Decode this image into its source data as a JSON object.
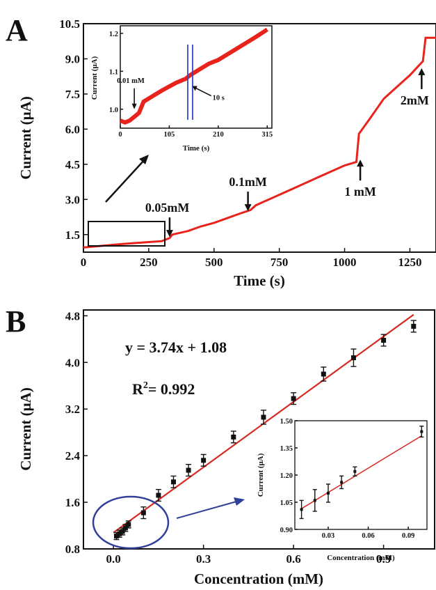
{
  "colors": {
    "trace": "#e8231c",
    "fit": "#d62a22",
    "marker": "#111111",
    "ellipse": "#2f3f9a",
    "marker_line": "#3347c8",
    "axis": "#111111"
  },
  "chart_data": [
    {
      "id": "A",
      "panel_label": "A",
      "type": "line",
      "xlabel": "Time (s)",
      "ylabel": "Current (μA)",
      "xlim": [
        0,
        1350
      ],
      "ylim": [
        0.75,
        10.5
      ],
      "xticks": [
        0,
        250,
        500,
        750,
        1000,
        1250
      ],
      "yticks": [
        1.5,
        3.0,
        4.5,
        6.0,
        7.5,
        9.0,
        10.5
      ],
      "ytick_labels": [
        "1.5",
        "3.0",
        "4.5",
        "6.0",
        "7.5",
        "9.0",
        "10.5"
      ],
      "series": [
        {
          "x": [
            0,
            50,
            100,
            150,
            200,
            250,
            300,
            330,
            340,
            400,
            450,
            500,
            550,
            600,
            640,
            660,
            700,
            750,
            800,
            850,
            900,
            950,
            1000,
            1045,
            1055,
            1100,
            1150,
            1200,
            1250,
            1300,
            1310,
            1350
          ],
          "y": [
            0.95,
            1.0,
            1.05,
            1.1,
            1.14,
            1.18,
            1.22,
            1.35,
            1.5,
            1.65,
            1.85,
            2.0,
            2.2,
            2.4,
            2.55,
            2.75,
            2.95,
            3.2,
            3.45,
            3.7,
            3.95,
            4.2,
            4.45,
            4.6,
            5.8,
            6.5,
            7.3,
            7.8,
            8.3,
            8.9,
            9.9,
            9.9
          ]
        }
      ],
      "annotations": [
        {
          "text": "0.05mM",
          "x": 330,
          "y": 1.4,
          "arrow": "down"
        },
        {
          "text": "0.1mM",
          "x": 630,
          "y": 2.5,
          "arrow": "down"
        },
        {
          "text": "1 mM",
          "x": 1060,
          "y": 4.7,
          "arrow": "up"
        },
        {
          "text": "2mM",
          "x": 1295,
          "y": 8.6,
          "arrow": "up"
        }
      ],
      "inset": {
        "xlabel": "Time (s)",
        "ylabel": "Current (μA)",
        "xlim": [
          0,
          325
        ],
        "ylim": [
          0.95,
          1.22
        ],
        "xticks": [
          0,
          105,
          210,
          315
        ],
        "yticks": [
          1.0,
          1.1,
          1.2
        ],
        "ytick_labels": [
          "1.0",
          "1.1",
          "1.2"
        ],
        "series": [
          {
            "x": [
              0,
              10,
              20,
              30,
              40,
              50,
              70,
              90,
              105,
              120,
              140,
              150,
              170,
              190,
              210,
              230,
              250,
              270,
              290,
              315
            ],
            "y": [
              0.97,
              0.965,
              0.97,
              0.98,
              0.99,
              1.02,
              1.035,
              1.05,
              1.06,
              1.07,
              1.08,
              1.09,
              1.105,
              1.12,
              1.13,
              1.145,
              1.16,
              1.175,
              1.19,
              1.21
            ]
          }
        ],
        "annotations": [
          {
            "text": "0.01 mM",
            "x": 30,
            "y": 1.0,
            "arrow": "down"
          },
          {
            "text": "10 s",
            "x": 165,
            "y": 1.05,
            "arrow": "left"
          }
        ]
      }
    },
    {
      "id": "B",
      "panel_label": "B",
      "type": "scatter",
      "xlabel": "Concentration (mM)",
      "ylabel": "Current (μA)",
      "xlim": [
        -0.1,
        1.07
      ],
      "ylim": [
        0.8,
        4.9
      ],
      "xticks": [
        0.0,
        0.3,
        0.6,
        0.9
      ],
      "xtick_labels": [
        "0.0",
        "0.3",
        "0.6",
        "0.9"
      ],
      "yticks": [
        0.8,
        1.6,
        2.4,
        3.2,
        4.0,
        4.8
      ],
      "ytick_labels": [
        "0.8",
        "1.6",
        "2.4",
        "3.2",
        "4.0",
        "4.8"
      ],
      "equation": "y = 3.74x + 1.08",
      "r2_prefix": "R",
      "r2_sup": "2",
      "r2_value": "= 0.992",
      "fit": {
        "slope": 3.74,
        "intercept": 1.08,
        "x0": 0.0,
        "x1": 1.0
      },
      "points": [
        {
          "x": 0.01,
          "y": 1.02,
          "err": 0.06
        },
        {
          "x": 0.02,
          "y": 1.06,
          "err": 0.06
        },
        {
          "x": 0.03,
          "y": 1.1,
          "err": 0.06
        },
        {
          "x": 0.04,
          "y": 1.16,
          "err": 0.06
        },
        {
          "x": 0.05,
          "y": 1.22,
          "err": 0.06
        },
        {
          "x": 0.1,
          "y": 1.42,
          "err": 0.1
        },
        {
          "x": 0.15,
          "y": 1.72,
          "err": 0.1
        },
        {
          "x": 0.2,
          "y": 1.95,
          "err": 0.1
        },
        {
          "x": 0.25,
          "y": 2.15,
          "err": 0.1
        },
        {
          "x": 0.3,
          "y": 2.32,
          "err": 0.1
        },
        {
          "x": 0.4,
          "y": 2.72,
          "err": 0.1
        },
        {
          "x": 0.5,
          "y": 3.06,
          "err": 0.12
        },
        {
          "x": 0.6,
          "y": 3.38,
          "err": 0.1
        },
        {
          "x": 0.7,
          "y": 3.8,
          "err": 0.12
        },
        {
          "x": 0.8,
          "y": 4.08,
          "err": 0.15
        },
        {
          "x": 0.9,
          "y": 4.38,
          "err": 0.1
        },
        {
          "x": 1.0,
          "y": 4.62,
          "err": 0.1
        }
      ],
      "inset": {
        "xlabel": "Concentration (mM)",
        "ylabel": "Current (μA)",
        "xlim": [
          0.005,
          0.104
        ],
        "ylim": [
          0.9,
          1.5
        ],
        "xticks": [
          0.03,
          0.06,
          0.09
        ],
        "xtick_labels": [
          "0.03",
          "0.06",
          "0.09"
        ],
        "yticks": [
          0.9,
          1.05,
          1.2,
          1.35,
          1.5
        ],
        "ytick_labels": [
          "0.90",
          "1.05",
          "1.20",
          "1.35",
          "1.50"
        ],
        "fit": {
          "slope": 4.47,
          "intercept": 0.97,
          "x0": 0.01,
          "x1": 0.1
        },
        "points": [
          {
            "x": 0.01,
            "y": 1.01,
            "err": 0.05
          },
          {
            "x": 0.02,
            "y": 1.06,
            "err": 0.06
          },
          {
            "x": 0.03,
            "y": 1.1,
            "err": 0.05
          },
          {
            "x": 0.04,
            "y": 1.16,
            "err": 0.035
          },
          {
            "x": 0.05,
            "y": 1.22,
            "err": 0.025
          },
          {
            "x": 0.1,
            "y": 1.44,
            "err": 0.03
          }
        ]
      }
    }
  ]
}
